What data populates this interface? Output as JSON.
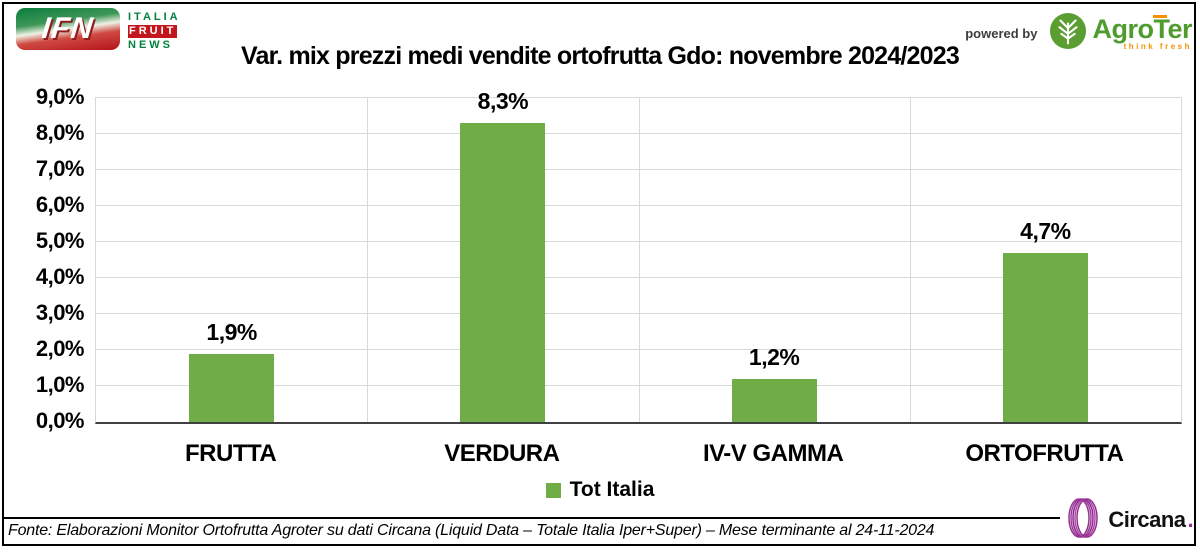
{
  "header": {
    "logo_ifn": {
      "monogram": "IFN",
      "word1": "ITALIA",
      "word2": "FRUIT",
      "word3": "NEWS"
    },
    "powered_by_label": "powered by",
    "logo_agroter": {
      "name_pre": "Agro",
      "name_t": "T",
      "name_post": "er",
      "tagline": "think fresh"
    }
  },
  "chart_data": {
    "type": "bar",
    "title": "Var. mix prezzi medi vendite ortofrutta Gdo: novembre 2024/2023",
    "categories": [
      "FRUTTA",
      "VERDURA",
      "IV-V GAMMA",
      "ORTOFRUTTA"
    ],
    "series": [
      {
        "name": "Tot Italia",
        "color": "#70AD47",
        "values": [
          1.9,
          8.3,
          1.2,
          4.7
        ],
        "value_labels": [
          "1,9%",
          "8,3%",
          "1,2%",
          "4,7%"
        ]
      }
    ],
    "y_axis": {
      "min": 0,
      "max": 9,
      "step": 1,
      "ticks": [
        "0,0%",
        "1,0%",
        "2,0%",
        "3,0%",
        "4,0%",
        "5,0%",
        "6,0%",
        "7,0%",
        "8,0%",
        "9,0%"
      ]
    },
    "grid": true,
    "legend_position": "bottom"
  },
  "legend": {
    "label": "Tot Italia",
    "swatch_color": "#70AD47"
  },
  "footer": {
    "source_note": "Fonte: Elaborazioni Monitor Ortofrutta Agroter su dati Circana (Liquid Data – Totale Italia Iper+Super) – Mese terminante al 24-11-2024",
    "logo_circana": {
      "name": "Circana",
      "period": "."
    }
  },
  "colors": {
    "bar_green": "#70AD47",
    "ifn_green": "#00813E",
    "ifn_red": "#C3161C",
    "agroter_green": "#4E9B2E",
    "agroter_orange": "#F39200",
    "circana_purple": "#93328E",
    "gridline": "#D9D9D9"
  }
}
